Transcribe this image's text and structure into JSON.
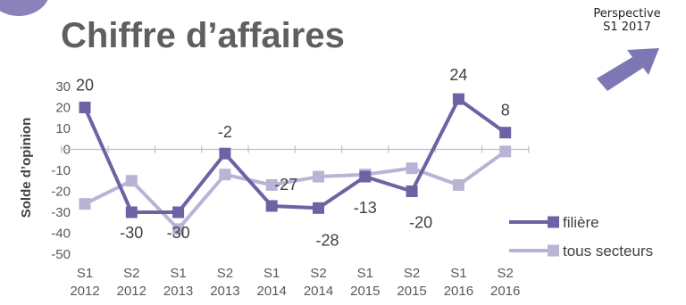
{
  "header": {
    "title": "Chiffre d’affaires",
    "perspective_line1": "Perspective",
    "perspective_line2": "S1 2017",
    "arrow_icon": "up-right-arrow-icon"
  },
  "colors": {
    "filiere": "#6b63a3",
    "tous_secteurs": "#b9b4d6",
    "axis": "#bfbfbf",
    "accent": "#7e77b5"
  },
  "chart_data": {
    "type": "line",
    "title": "Chiffre d’affaires",
    "xlabel": "",
    "ylabel": "Solde d’opinion",
    "ylim": [
      -50,
      30
    ],
    "yticks": [
      30,
      20,
      10,
      0,
      -10,
      -20,
      -30,
      -40,
      -50
    ],
    "categories": [
      [
        "S1",
        "2012"
      ],
      [
        "S2",
        "2012"
      ],
      [
        "S1",
        "2013"
      ],
      [
        "S2",
        "2013"
      ],
      [
        "S1",
        "2014"
      ],
      [
        "S2",
        "2014"
      ],
      [
        "S1",
        "2015"
      ],
      [
        "S2",
        "2015"
      ],
      [
        "S1",
        "2016"
      ],
      [
        "S2",
        "2016"
      ]
    ],
    "series": [
      {
        "name": "filière",
        "values": [
          20,
          -30,
          -30,
          -2,
          -27,
          -28,
          -13,
          -20,
          24,
          8
        ],
        "data_labels": [
          "20",
          "-30",
          "-30",
          "-2",
          "-27",
          "-28",
          "-13",
          "-20",
          "24",
          "8"
        ]
      },
      {
        "name": "tous secteurs",
        "values": [
          -26,
          -15,
          -38,
          -12,
          -17,
          -13,
          -12,
          -9,
          -17,
          -1
        ]
      }
    ],
    "grid": false,
    "legend_position": "bottom-right"
  }
}
